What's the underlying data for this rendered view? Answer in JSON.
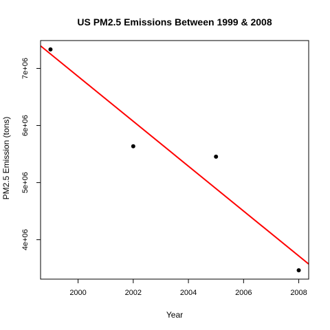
{
  "chart_data": {
    "type": "scatter",
    "title": "US PM2.5 Emissions Between 1999 & 2008",
    "xlabel": "Year",
    "ylabel": "PM2.5 Emission (tons)",
    "x": [
      1999,
      2002,
      2005,
      2008
    ],
    "y": [
      7332967,
      5635780,
      5454703,
      3464206
    ],
    "xlim": [
      1998.64,
      2008.36
    ],
    "ylim": [
      3309575,
      7487598
    ],
    "x_ticks": [
      2000,
      2002,
      2004,
      2006,
      2008
    ],
    "y_ticks": [
      4000000,
      5000000,
      6000000,
      7000000
    ],
    "x_tick_labels": [
      "2000",
      "2002",
      "2004",
      "2006",
      "2008"
    ],
    "y_tick_labels": [
      "4e+06",
      "5e+06",
      "6e+06",
      "7e+06"
    ],
    "trend_line": {
      "type": "linear-fit",
      "x": [
        1998.64,
        2008.36
      ],
      "y": [
        7393870,
        3574005
      ]
    },
    "grid": false,
    "legend": "none",
    "colors": {
      "points": "#000000",
      "trend_line": "#ff0000",
      "axes": "#000000"
    }
  }
}
